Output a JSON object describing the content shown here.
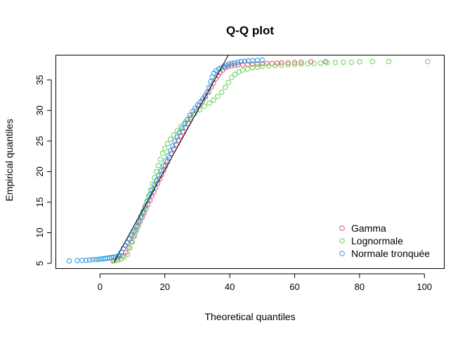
{
  "chart_data": {
    "type": "scatter",
    "title": "Q-Q plot",
    "xlabel": "Theoretical quantiles",
    "ylabel": "Empirical quantiles",
    "xlim": [
      -13.5,
      106
    ],
    "ylim": [
      4.2,
      39
    ],
    "x_ticks": [
      0,
      20,
      40,
      60,
      80,
      100
    ],
    "y_ticks": [
      5,
      10,
      15,
      20,
      25,
      30,
      35
    ],
    "legend_position": "bottom-right",
    "grid": false,
    "reference_line": {
      "x": [
        4.3,
        39.5
      ],
      "y": [
        5.2,
        39
      ],
      "color": "#000000"
    },
    "series": [
      {
        "name": "Gamma",
        "color": "#DF536B",
        "points": [
          [
            4.0,
            5.4
          ],
          [
            5.5,
            5.8
          ],
          [
            7.0,
            6.2
          ],
          [
            8.0,
            6.8
          ],
          [
            8.8,
            7.6
          ],
          [
            9.6,
            8.5
          ],
          [
            10.3,
            9.4
          ],
          [
            11.0,
            10.2
          ],
          [
            11.7,
            11.0
          ],
          [
            12.4,
            11.8
          ],
          [
            13.0,
            12.5
          ],
          [
            13.6,
            13.2
          ],
          [
            14.2,
            13.9
          ],
          [
            14.8,
            14.6
          ],
          [
            15.4,
            15.3
          ],
          [
            16.0,
            16.0
          ],
          [
            16.6,
            16.7
          ],
          [
            17.2,
            17.4
          ],
          [
            17.8,
            18.1
          ],
          [
            18.4,
            18.8
          ],
          [
            19.0,
            19.5
          ],
          [
            19.6,
            20.2
          ],
          [
            20.2,
            20.9
          ],
          [
            20.8,
            21.6
          ],
          [
            21.4,
            22.3
          ],
          [
            22.0,
            23.0
          ],
          [
            22.7,
            23.7
          ],
          [
            23.4,
            24.4
          ],
          [
            24.1,
            25.1
          ],
          [
            24.8,
            25.8
          ],
          [
            25.5,
            26.5
          ],
          [
            26.3,
            27.2
          ],
          [
            27.1,
            27.9
          ],
          [
            27.9,
            28.6
          ],
          [
            28.8,
            29.4
          ],
          [
            29.7,
            30.1
          ],
          [
            30.6,
            30.8
          ],
          [
            31.5,
            31.5
          ],
          [
            32.5,
            32.2
          ],
          [
            33.5,
            33.0
          ],
          [
            34.3,
            33.8
          ],
          [
            35.0,
            34.5
          ],
          [
            35.7,
            35.2
          ],
          [
            36.4,
            35.7
          ],
          [
            37.0,
            36.2
          ],
          [
            37.8,
            36.6
          ],
          [
            38.6,
            37.0
          ],
          [
            39.5,
            37.2
          ],
          [
            40.5,
            37.3
          ],
          [
            41.5,
            37.4
          ],
          [
            42.5,
            37.45
          ],
          [
            44.0,
            37.5
          ],
          [
            45.5,
            37.55
          ],
          [
            47.0,
            37.6
          ],
          [
            48.5,
            37.6
          ],
          [
            50.0,
            37.65
          ],
          [
            51.5,
            37.7
          ],
          [
            53.0,
            37.7
          ],
          [
            54.5,
            37.75
          ],
          [
            56.0,
            37.8
          ],
          [
            58.0,
            37.8
          ],
          [
            60.0,
            37.85
          ],
          [
            62.0,
            37.9
          ],
          [
            65.0,
            37.95
          ],
          [
            69.5,
            38.0
          ]
        ]
      },
      {
        "name": "Lognormale",
        "color": "#61D04F",
        "points": [
          [
            4.5,
            5.4
          ],
          [
            5.5,
            5.5
          ],
          [
            6.5,
            5.7
          ],
          [
            7.5,
            6.0
          ],
          [
            8.5,
            6.5
          ],
          [
            9.3,
            7.5
          ],
          [
            10.0,
            8.5
          ],
          [
            10.7,
            9.5
          ],
          [
            11.3,
            10.5
          ],
          [
            12.0,
            11.5
          ],
          [
            12.6,
            12.4
          ],
          [
            13.2,
            13.3
          ],
          [
            13.8,
            14.2
          ],
          [
            14.4,
            15.1
          ],
          [
            15.0,
            16.0
          ],
          [
            15.6,
            17.0
          ],
          [
            16.2,
            18.0
          ],
          [
            16.8,
            19.0
          ],
          [
            17.4,
            20.0
          ],
          [
            18.0,
            21.0
          ],
          [
            18.6,
            22.0
          ],
          [
            19.3,
            23.0
          ],
          [
            20.0,
            23.8
          ],
          [
            20.8,
            24.6
          ],
          [
            21.7,
            25.3
          ],
          [
            22.7,
            26.0
          ],
          [
            23.8,
            26.7
          ],
          [
            25.0,
            27.4
          ],
          [
            26.3,
            28.1
          ],
          [
            27.7,
            28.8
          ],
          [
            29.2,
            29.5
          ],
          [
            30.7,
            30.1
          ],
          [
            32.2,
            30.7
          ],
          [
            33.7,
            31.2
          ],
          [
            35.0,
            31.7
          ],
          [
            36.3,
            32.3
          ],
          [
            37.5,
            33.0
          ],
          [
            38.6,
            33.8
          ],
          [
            39.6,
            34.6
          ],
          [
            40.6,
            35.4
          ],
          [
            41.6,
            35.9
          ],
          [
            42.8,
            36.3
          ],
          [
            44.0,
            36.6
          ],
          [
            45.5,
            36.8
          ],
          [
            47.0,
            37.0
          ],
          [
            48.5,
            37.1
          ],
          [
            50.0,
            37.2
          ],
          [
            52.0,
            37.3
          ],
          [
            54.0,
            37.35
          ],
          [
            56.0,
            37.4
          ],
          [
            58.0,
            37.5
          ],
          [
            60.0,
            37.55
          ],
          [
            62.0,
            37.6
          ],
          [
            64.0,
            37.65
          ],
          [
            66.0,
            37.7
          ],
          [
            68.0,
            37.75
          ],
          [
            70.0,
            37.8
          ],
          [
            72.5,
            37.85
          ],
          [
            75.0,
            37.9
          ],
          [
            77.5,
            37.9
          ],
          [
            80.0,
            37.95
          ],
          [
            84.0,
            38.0
          ],
          [
            89.0,
            38.0
          ],
          [
            101.0,
            38.0
          ]
        ]
      },
      {
        "name": "Normale tronquée",
        "color": "#2297E6",
        "points": [
          [
            -9.5,
            5.4
          ],
          [
            -7.0,
            5.45
          ],
          [
            -5.5,
            5.5
          ],
          [
            -4.3,
            5.5
          ],
          [
            -3.2,
            5.55
          ],
          [
            -2.2,
            5.6
          ],
          [
            -1.3,
            5.6
          ],
          [
            -0.5,
            5.65
          ],
          [
            0.3,
            5.7
          ],
          [
            1.0,
            5.75
          ],
          [
            1.7,
            5.8
          ],
          [
            2.3,
            5.85
          ],
          [
            3.0,
            5.9
          ],
          [
            3.6,
            5.95
          ],
          [
            4.2,
            6.0
          ],
          [
            4.8,
            6.05
          ],
          [
            5.4,
            6.1
          ],
          [
            6.0,
            6.3
          ],
          [
            6.6,
            6.8
          ],
          [
            7.2,
            7.4
          ],
          [
            7.8,
            7.9
          ],
          [
            8.4,
            8.4
          ],
          [
            9.1,
            8.9
          ],
          [
            9.8,
            9.6
          ],
          [
            10.5,
            10.3
          ],
          [
            11.2,
            11.1
          ],
          [
            11.9,
            11.9
          ],
          [
            12.6,
            12.7
          ],
          [
            13.3,
            13.5
          ],
          [
            14.0,
            14.4
          ],
          [
            14.7,
            15.3
          ],
          [
            15.4,
            16.2
          ],
          [
            16.1,
            17.0
          ],
          [
            16.8,
            17.8
          ],
          [
            17.5,
            18.6
          ],
          [
            18.2,
            19.4
          ],
          [
            18.9,
            20.2
          ],
          [
            19.6,
            21.0
          ],
          [
            20.3,
            21.8
          ],
          [
            21.0,
            22.6
          ],
          [
            21.7,
            23.4
          ],
          [
            22.4,
            24.2
          ],
          [
            23.1,
            25.0
          ],
          [
            23.8,
            25.7
          ],
          [
            24.5,
            26.4
          ],
          [
            25.3,
            27.1
          ],
          [
            26.1,
            27.8
          ],
          [
            26.9,
            28.5
          ],
          [
            27.7,
            29.2
          ],
          [
            28.5,
            29.8
          ],
          [
            29.3,
            30.4
          ],
          [
            30.1,
            30.9
          ],
          [
            30.9,
            31.4
          ],
          [
            31.7,
            31.9
          ],
          [
            32.4,
            32.4
          ],
          [
            33.0,
            33.0
          ],
          [
            33.6,
            33.8
          ],
          [
            34.1,
            34.7
          ],
          [
            34.6,
            35.5
          ],
          [
            35.1,
            36.1
          ],
          [
            35.8,
            36.5
          ],
          [
            36.6,
            36.8
          ],
          [
            37.4,
            37.0
          ],
          [
            38.2,
            37.2
          ],
          [
            39.0,
            37.4
          ],
          [
            39.8,
            37.6
          ],
          [
            40.6,
            37.7
          ],
          [
            41.5,
            37.8
          ],
          [
            42.5,
            37.9
          ],
          [
            43.5,
            38.0
          ],
          [
            44.6,
            38.05
          ],
          [
            45.7,
            38.1
          ],
          [
            47.0,
            38.15
          ],
          [
            48.5,
            38.2
          ],
          [
            50.0,
            38.25
          ]
        ]
      }
    ]
  }
}
